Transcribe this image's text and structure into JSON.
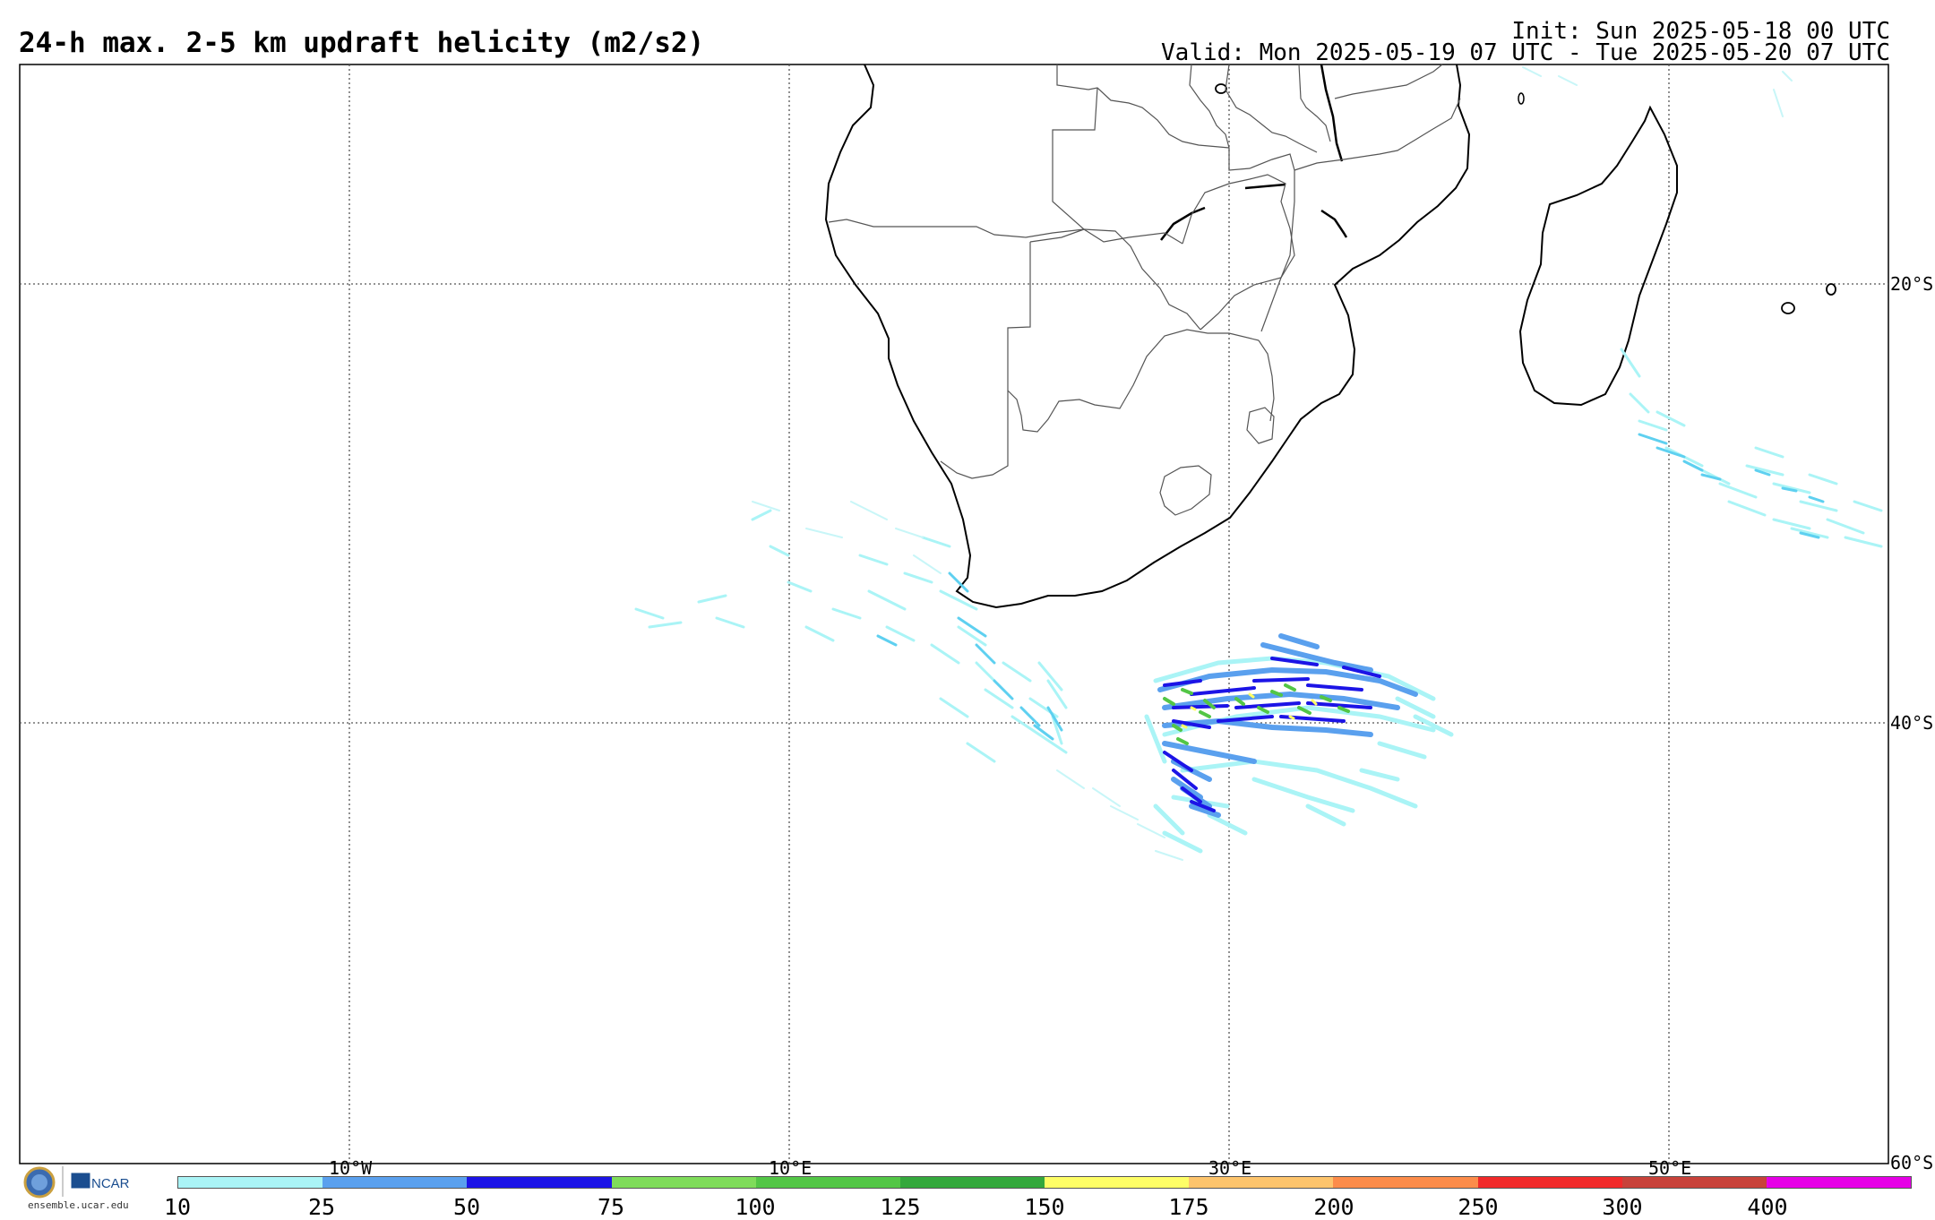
{
  "header": {
    "title": "24-h max. 2-5 km updraft helicity (m2/s2)",
    "init": "Init: Sun 2025-05-18 00 UTC",
    "valid": "Valid: Mon 2025-05-19 07 UTC - Tue 2025-05-20 07 UTC"
  },
  "map": {
    "lon_labels": [
      "10°W",
      "10°E",
      "30°E",
      "50°E"
    ],
    "lat_labels": [
      "20°S",
      "40°S",
      "60°S"
    ],
    "coast_color": "#000000",
    "grid_style": "dotted"
  },
  "colorbar": {
    "ticks": [
      "10",
      "25",
      "50",
      "75",
      "100",
      "125",
      "150",
      "175",
      "200",
      "250",
      "300",
      "400"
    ],
    "colors": [
      "#aaf4f6",
      "#5aa0ee",
      "#1c14e6",
      "#7fdc5a",
      "#53c646",
      "#34a83c",
      "#fefe66",
      "#fdc46c",
      "#fc8c4a",
      "#f12a2a",
      "#c8423a",
      "#e600e6"
    ]
  },
  "logo": {
    "org1": "NSF",
    "org2": "NCAR",
    "url": "ensemble.ucar.edu"
  }
}
